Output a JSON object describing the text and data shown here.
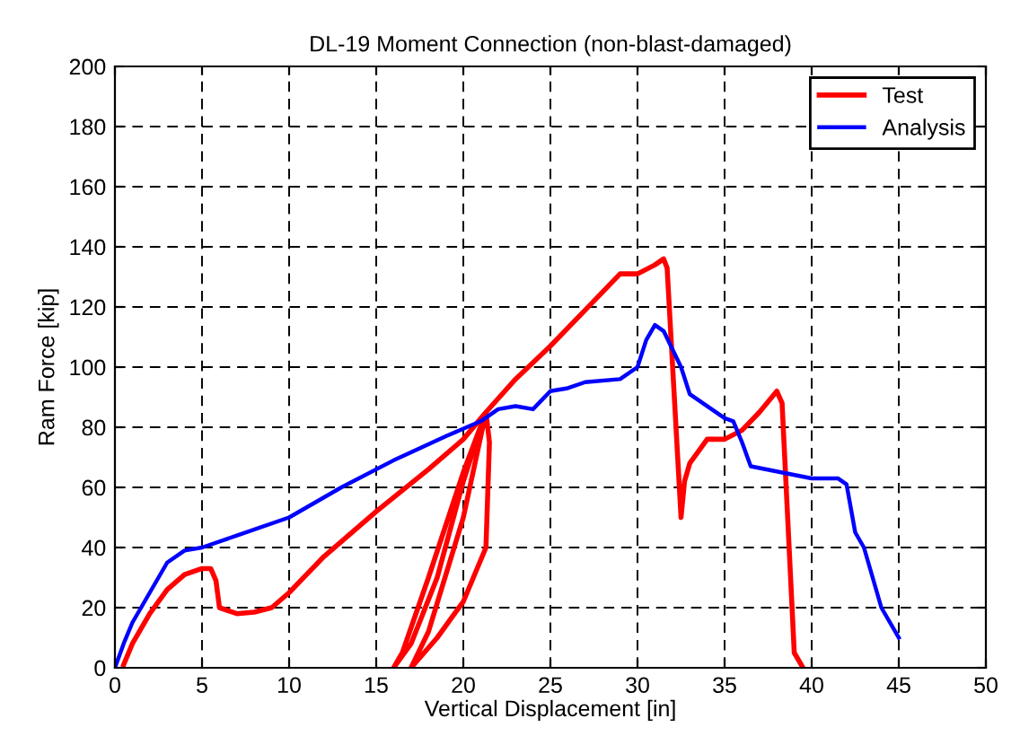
{
  "chart_data": {
    "type": "line",
    "title": "DL-19 Moment Connection (non-blast-damaged)",
    "xlabel": "Vertical Displacement [in]",
    "ylabel": "Ram Force [kip]",
    "xlim": [
      0,
      50
    ],
    "ylim": [
      0,
      200
    ],
    "xticks": [
      0,
      5,
      10,
      15,
      20,
      25,
      30,
      35,
      40,
      45,
      50
    ],
    "yticks": [
      0,
      20,
      40,
      60,
      80,
      100,
      120,
      140,
      160,
      180,
      200
    ],
    "grid": true,
    "legend": "top right",
    "line_style": "solid",
    "series": [
      {
        "name": "Test",
        "color": "#ff0000",
        "x": [
          0.5,
          1,
          2,
          3,
          4,
          5,
          5.5,
          5.8,
          6,
          7,
          8,
          9,
          10,
          11,
          12,
          13,
          15,
          18,
          20,
          21.3,
          21,
          20,
          18.5,
          17,
          16,
          16.5,
          18,
          20,
          21.3,
          21.5,
          21.3,
          20,
          18.5,
          17,
          18,
          20,
          21.3,
          23,
          25,
          27,
          29,
          30,
          31,
          31.5,
          31.7,
          32.5,
          32.7,
          33,
          34,
          35,
          36,
          37,
          38,
          38.3,
          39,
          39.5
        ],
        "values": [
          1,
          8,
          18,
          26,
          31,
          33,
          33,
          29,
          20,
          18,
          18.5,
          20,
          25,
          31,
          37,
          42,
          52,
          66,
          76,
          85,
          80,
          62,
          30,
          8,
          0,
          5,
          30,
          65,
          85,
          75,
          40,
          22,
          10,
          0,
          12,
          50,
          85,
          96,
          107,
          119,
          131,
          131,
          134,
          136,
          133,
          50,
          62,
          68,
          76,
          76,
          79,
          85,
          92,
          88,
          5,
          0
        ]
      },
      {
        "name": "Analysis",
        "color": "#0000ff",
        "x": [
          0,
          0.5,
          1,
          2,
          3,
          4,
          5,
          7,
          10,
          13,
          16,
          19,
          21,
          22,
          23,
          24,
          25,
          26,
          27,
          29,
          30,
          30.5,
          31,
          31.5,
          32.5,
          33,
          35,
          35.5,
          36,
          36.5,
          40,
          41.5,
          42,
          42.5,
          43,
          44,
          45
        ],
        "values": [
          0,
          8,
          15,
          25,
          35,
          39,
          40,
          44,
          50,
          60,
          69,
          77,
          82,
          86,
          87,
          86,
          92,
          93,
          95,
          96,
          100,
          109,
          114,
          112,
          100,
          91,
          83,
          82,
          75,
          67,
          63,
          63,
          61,
          45,
          40,
          20,
          10
        ]
      }
    ]
  }
}
